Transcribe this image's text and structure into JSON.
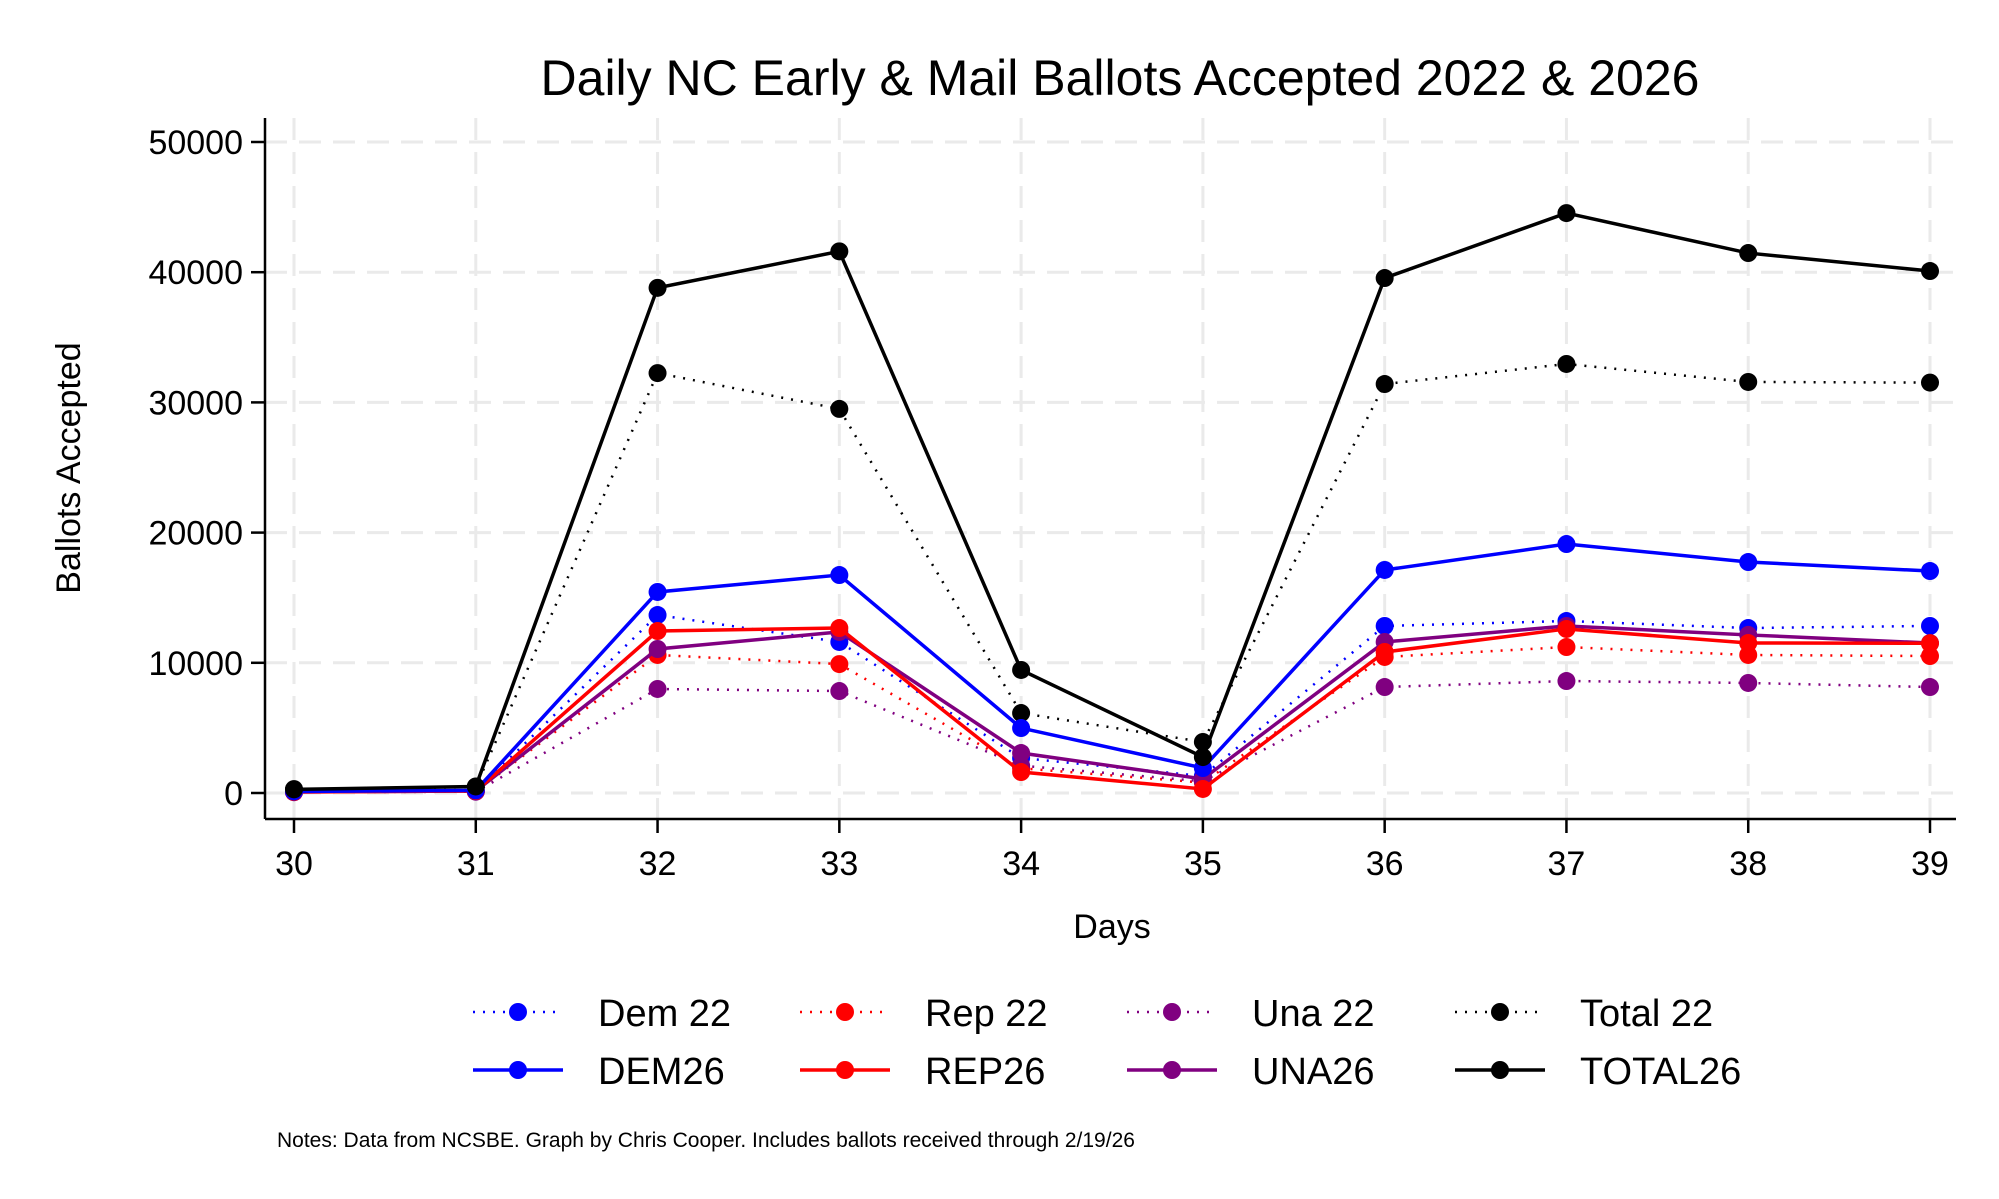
{
  "chart_data": {
    "type": "line",
    "title": "Daily NC Early & Mail Ballots Accepted 2022 & 2026",
    "xlabel": "Days",
    "ylabel": "Ballots Accepted",
    "x": [
      30,
      31,
      32,
      33,
      34,
      35,
      36,
      37,
      38,
      39
    ],
    "xlim": [
      30,
      39
    ],
    "ylim": [
      0,
      50000
    ],
    "yticks": [
      0,
      10000,
      20000,
      30000,
      40000,
      50000
    ],
    "xticks": [
      30,
      31,
      32,
      33,
      34,
      35,
      36,
      37,
      38,
      39
    ],
    "grid": true,
    "legend_position": "bottom",
    "series": [
      {
        "name": "Dem 22",
        "color": "#0000ff",
        "style": "dotted",
        "values": [
          100,
          150,
          13670,
          11600,
          2690,
          1300,
          12830,
          13210,
          12670,
          12830
        ]
      },
      {
        "name": "Rep 22",
        "color": "#ff0000",
        "style": "dotted",
        "values": [
          80,
          120,
          10600,
          9900,
          1900,
          800,
          10450,
          11210,
          10600,
          10520
        ]
      },
      {
        "name": "Una 22",
        "color": "#800080",
        "style": "dotted",
        "values": [
          60,
          100,
          7990,
          7830,
          2100,
          900,
          8140,
          8600,
          8450,
          8140
        ]
      },
      {
        "name": "Total 22",
        "color": "#000000",
        "style": "dotted",
        "values": [
          300,
          450,
          32250,
          29500,
          6140,
          3920,
          31410,
          32950,
          31570,
          31520
        ]
      },
      {
        "name": "DEM26",
        "color": "#0000ff",
        "style": "solid",
        "values": [
          120,
          200,
          15440,
          16740,
          4990,
          1920,
          17130,
          19120,
          17740,
          17050
        ]
      },
      {
        "name": "REP26",
        "color": "#ff0000",
        "style": "solid",
        "values": [
          80,
          150,
          12440,
          12670,
          1610,
          310,
          10830,
          12600,
          11520,
          11500
        ]
      },
      {
        "name": "UNA26",
        "color": "#800080",
        "style": "solid",
        "values": [
          80,
          150,
          11060,
          12370,
          3070,
          1080,
          11600,
          12830,
          12140,
          11520
        ]
      },
      {
        "name": "TOTAL26",
        "color": "#000000",
        "style": "solid",
        "values": [
          280,
          500,
          38800,
          41600,
          9450,
          2760,
          39550,
          44540,
          41470,
          40090
        ]
      }
    ],
    "note": "Notes: Data from NCSBE. Graph by Chris Cooper. Includes ballots received through 2/19/26"
  }
}
